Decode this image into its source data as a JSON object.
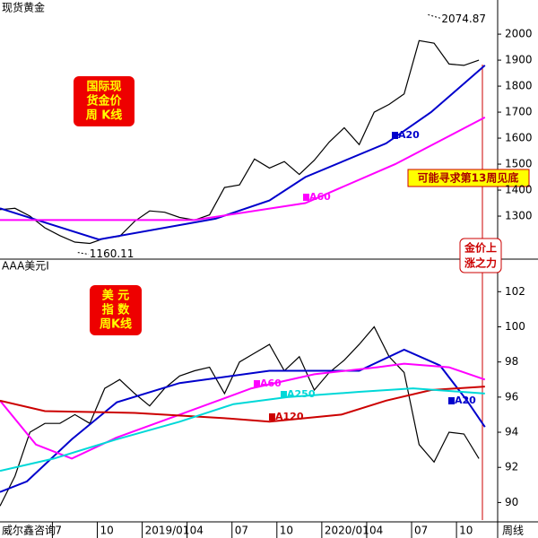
{
  "chart_data": [
    {
      "type": "line",
      "title": "现货黄金",
      "xlim": [
        2.5,
        35.75
      ],
      "ylim": [
        1138,
        2090
      ],
      "yticks": [
        1300,
        1400,
        1500,
        1600,
        1700,
        1800,
        1900,
        2000
      ],
      "high": {
        "value": 2074.87,
        "x": 31.1
      },
      "low": {
        "value": 1160.11,
        "x": 7.7
      },
      "box_notes": [
        [
          "国际现",
          "货金价",
          "周  K线"
        ],
        [
          "可能寻求第13周见底"
        ],
        [
          "金价上",
          "涨之力"
        ]
      ],
      "series": [
        {
          "color": "#000000",
          "x": [
            2.5,
            3.5,
            4.5,
            5.5,
            6.5,
            7.5,
            8.5,
            9.5,
            10.5,
            11.5,
            12.5,
            13.5,
            14.5,
            15.5,
            16.5,
            17.5,
            18.5,
            19.5,
            20.5,
            21.5,
            22.5,
            23.5,
            24.5,
            25.5,
            26.5,
            27.5,
            28.5,
            29.5,
            30.5,
            31.5,
            32.5,
            33.5,
            34.5
          ],
          "values": [
            1325,
            1330,
            1300,
            1255,
            1225,
            1200,
            1195,
            1215,
            1222,
            1280,
            1320,
            1315,
            1295,
            1285,
            1305,
            1410,
            1420,
            1520,
            1485,
            1510,
            1460,
            1515,
            1585,
            1640,
            1575,
            1700,
            1730,
            1770,
            1975,
            1965,
            1885,
            1880,
            1900
          ]
        },
        {
          "name": "A20",
          "color": "#0000cc",
          "x": [
            2.5,
            9.1,
            16.9,
            20.5,
            22.9,
            28.3,
            31.3,
            34.9
          ],
          "values": [
            1330,
            1210,
            1290,
            1360,
            1450,
            1580,
            1700,
            1880
          ]
        },
        {
          "name": "A60",
          "color": "#ff00ff",
          "x": [
            2.5,
            15.5,
            22.9,
            28.9,
            34.9
          ],
          "values": [
            1285,
            1285,
            1350,
            1500,
            1680
          ]
        }
      ]
    },
    {
      "type": "line",
      "title": "AAA美元I",
      "source": "威尔鑫咨询",
      "period": "周线",
      "xlim": [
        2.5,
        35.75
      ],
      "ylim": [
        89,
        103.7
      ],
      "yticks": [
        90,
        92,
        94,
        96,
        98,
        100,
        102
      ],
      "xticks": [
        {
          "value": 6,
          "label": "7"
        },
        {
          "value": 9,
          "label": "10"
        },
        {
          "value": 12,
          "label": "2019/01"
        },
        {
          "value": 15,
          "label": "04"
        },
        {
          "value": 18,
          "label": "07"
        },
        {
          "value": 21,
          "label": "10"
        },
        {
          "value": 24,
          "label": "2020/01"
        },
        {
          "value": 27,
          "label": "04"
        },
        {
          "value": 30,
          "label": "07"
        },
        {
          "value": 33,
          "label": "10"
        }
      ],
      "box_notes": [
        [
          "美  元",
          "指  数",
          "周K线"
        ]
      ],
      "series": [
        {
          "color": "#000000",
          "x": [
            2.5,
            3.5,
            4.5,
            5.5,
            6.5,
            7.5,
            8.5,
            9.5,
            10.5,
            11.5,
            12.5,
            13.5,
            14.5,
            15.5,
            16.5,
            17.5,
            18.5,
            19.5,
            20.5,
            21.5,
            22.5,
            23.5,
            24.5,
            25.5,
            26.5,
            27.5,
            28.5,
            29.5,
            30.5,
            31.5,
            32.5,
            33.5,
            34.5
          ],
          "values": [
            89.8,
            91.5,
            94,
            94.5,
            94.5,
            95,
            94.5,
            96.5,
            97,
            96.2,
            95.5,
            96.5,
            97.2,
            97.5,
            97.7,
            96.2,
            98,
            98.5,
            99,
            97.5,
            98.3,
            96.4,
            97.4,
            98.1,
            99,
            100,
            98.3,
            97.4,
            93.3,
            92.3,
            94,
            93.9,
            92.5
          ]
        },
        {
          "name": "A20",
          "color": "#0000cc",
          "x": [
            2.5,
            4.3,
            7.3,
            10.3,
            14.5,
            20.5,
            26.5,
            29.5,
            31.9,
            33.7,
            34.9
          ],
          "values": [
            90.6,
            91.2,
            93.6,
            95.7,
            96.8,
            97.5,
            97.5,
            98.7,
            97.8,
            95.8,
            94.3
          ]
        },
        {
          "name": "A60",
          "color": "#ff00ff",
          "x": [
            2.5,
            4.9,
            7.3,
            10.3,
            14.5,
            19.3,
            23.5,
            27.7,
            29.5,
            32.5,
            34.9
          ],
          "values": [
            95.8,
            93.3,
            92.5,
            93.7,
            95,
            96.5,
            97.3,
            97.7,
            97.9,
            97.7,
            97
          ]
        },
        {
          "name": "A120",
          "color": "#cc0000",
          "x": [
            2.5,
            5.5,
            11.5,
            17.5,
            20.5,
            25.3,
            28.3,
            31.3,
            34.9
          ],
          "values": [
            95.8,
            95.2,
            95.1,
            94.8,
            94.6,
            95,
            95.8,
            96.4,
            96.6
          ]
        },
        {
          "name": "A250",
          "color": "#00d8d8",
          "x": [
            2.5,
            6.1,
            10.3,
            14.5,
            18.1,
            21.7,
            26.5,
            30.1,
            34.9
          ],
          "values": [
            91.8,
            92.5,
            93.6,
            94.6,
            95.6,
            96,
            96.3,
            96.5,
            96.2
          ]
        }
      ]
    }
  ]
}
